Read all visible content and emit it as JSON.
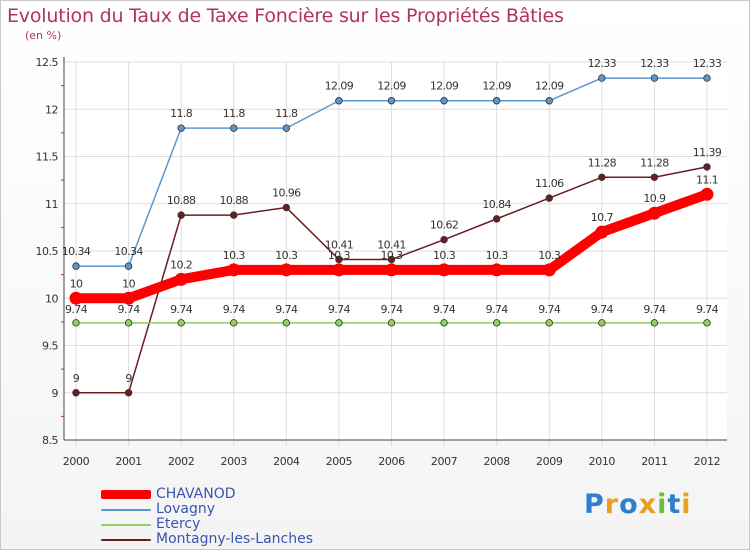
{
  "chart_data": {
    "type": "line",
    "title": "Evolution du Taux de Taxe Foncière sur les Propriétés Bâties",
    "subtitle": "(en %)",
    "xlabel": "",
    "ylabel": "",
    "x": [
      "2000",
      "2001",
      "2002",
      "2003",
      "2004",
      "2005",
      "2006",
      "2007",
      "2008",
      "2009",
      "2010",
      "2011",
      "2012"
    ],
    "ylim": [
      8.5,
      12.5
    ],
    "yticks": [
      "8.5",
      "9",
      "9.5",
      "10",
      "10.5",
      "11",
      "11.5",
      "12",
      "12.5"
    ],
    "grid": true,
    "legend_position": "bottom-left",
    "series": [
      {
        "name": "CHAVANOD",
        "color": "#ff0000",
        "values": [
          10,
          10,
          10.2,
          10.3,
          10.3,
          10.3,
          10.3,
          10.3,
          10.3,
          10.3,
          10.7,
          10.9,
          11.1
        ]
      },
      {
        "name": "Lovagny",
        "color": "#5b97cf",
        "values": [
          10.34,
          10.34,
          11.8,
          11.8,
          11.8,
          12.09,
          12.09,
          12.09,
          12.09,
          12.09,
          12.33,
          12.33,
          12.33
        ]
      },
      {
        "name": "Etercy",
        "color": "#8ed15c",
        "values": [
          9.74,
          9.74,
          9.74,
          9.74,
          9.74,
          9.74,
          9.74,
          9.74,
          9.74,
          9.74,
          9.74,
          9.74,
          9.74
        ]
      },
      {
        "name": "Montagny-les-Lanches",
        "color": "#6b1d22",
        "values": [
          9,
          9,
          10.88,
          10.88,
          10.96,
          10.41,
          10.41,
          10.62,
          10.84,
          11.06,
          11.28,
          11.28,
          11.39
        ]
      }
    ]
  },
  "logo": {
    "text": "Proxiti",
    "letters": [
      "P",
      "r",
      "o",
      "x",
      "i",
      "t",
      "i"
    ],
    "colors": [
      "#2f7fd0",
      "#e6a21f",
      "#2f7fd0",
      "#e6a21f",
      "#6cbf3c",
      "#2f7fd0",
      "#e6a21f"
    ]
  }
}
